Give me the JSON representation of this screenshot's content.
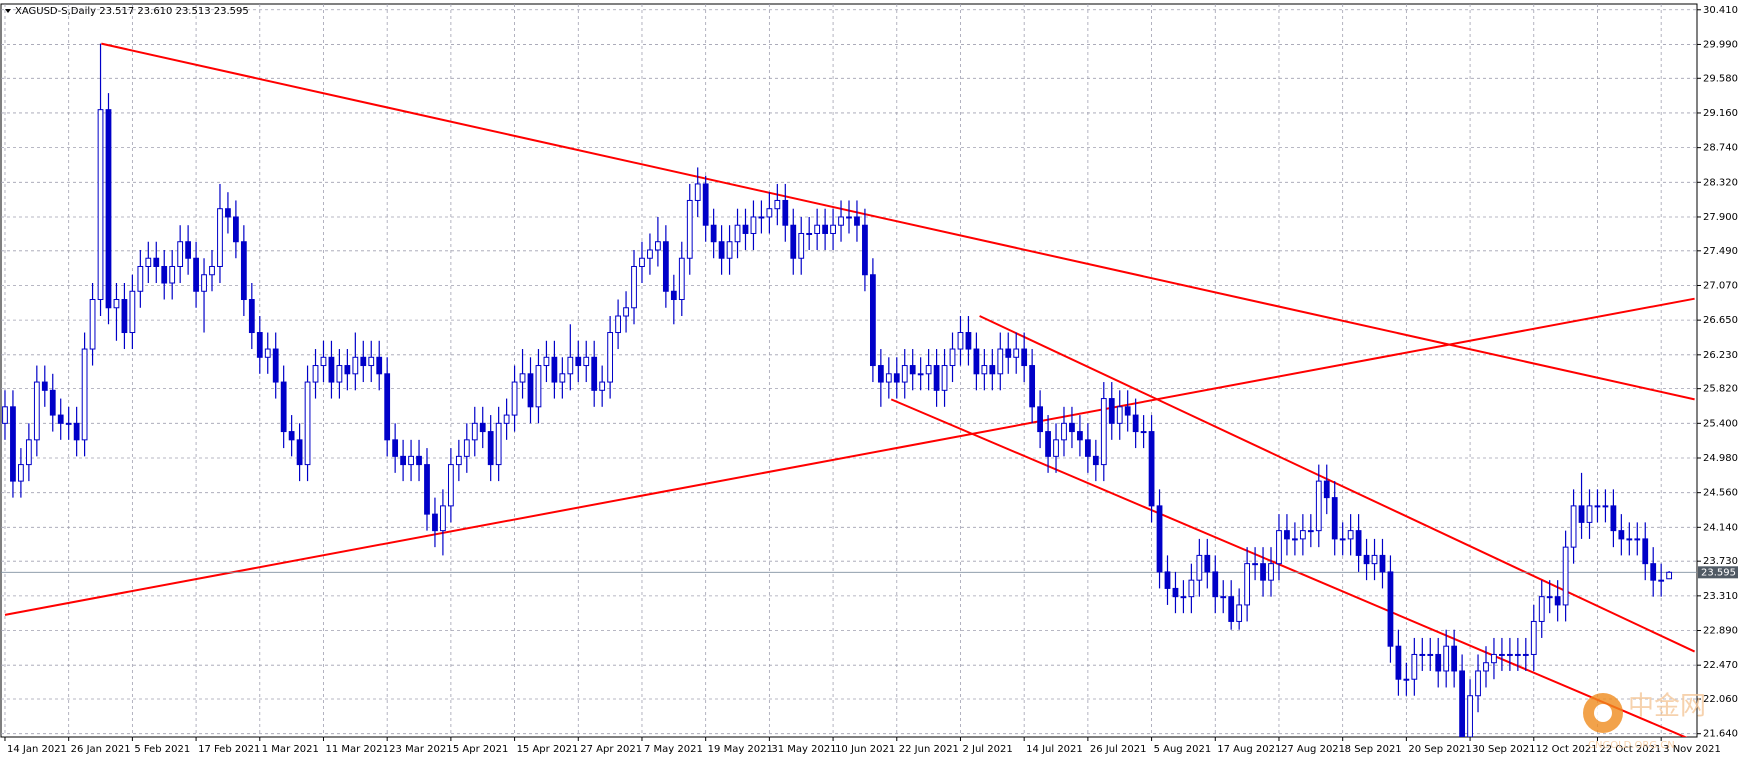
{
  "chart_data": {
    "type": "candlestick",
    "title": "XAGUSD-S,Daily  23.517 23.610 23.513 23.595",
    "watermark": {
      "name": "中金网",
      "site": "CNGOLD.ORG.CN"
    },
    "categories": [
      "14 Jan 2021",
      null,
      null,
      null,
      null,
      null,
      null,
      null,
      "26 Jan 2021",
      null,
      null,
      null,
      null,
      null,
      null,
      null,
      "5 Feb 2021",
      null,
      null,
      null,
      null,
      null,
      null,
      null,
      "17 Feb 2021",
      null,
      null,
      null,
      null,
      null,
      null,
      null,
      "1 Mar 2021",
      null,
      null,
      null,
      null,
      null,
      null,
      null,
      "11 Mar 2021",
      null,
      null,
      null,
      null,
      null,
      null,
      null,
      "23 Mar 2021",
      null,
      null,
      null,
      null,
      null,
      null,
      null,
      "5 Apr 2021",
      null,
      null,
      null,
      null,
      null,
      null,
      null,
      "15 Apr 2021",
      null,
      null,
      null,
      null,
      null,
      null,
      null,
      "27 Apr 2021",
      null,
      null,
      null,
      null,
      null,
      null,
      null,
      "7 May 2021",
      null,
      null,
      null,
      null,
      null,
      null,
      null,
      "19 May 2021",
      null,
      null,
      null,
      null,
      null,
      null,
      null,
      "31 May 2021",
      null,
      null,
      null,
      null,
      null,
      null,
      null,
      "10 Jun 2021",
      null,
      null,
      null,
      null,
      null,
      null,
      null,
      "22 Jun 2021",
      null,
      null,
      null,
      null,
      null,
      null,
      null,
      "2 Jul 2021",
      null,
      null,
      null,
      null,
      null,
      null,
      null,
      "14 Jul 2021",
      null,
      null,
      null,
      null,
      null,
      null,
      null,
      "26 Jul 2021",
      null,
      null,
      null,
      null,
      null,
      null,
      null,
      "5 Aug 2021",
      null,
      null,
      null,
      null,
      null,
      null,
      null,
      "17 Aug 2021",
      null,
      null,
      null,
      null,
      null,
      null,
      null,
      "27 Aug 2021",
      null,
      null,
      null,
      null,
      null,
      null,
      null,
      "8 Sep 2021",
      null,
      null,
      null,
      null,
      null,
      null,
      null,
      "20 Sep 2021",
      null,
      null,
      null,
      null,
      null,
      null,
      null,
      "30 Sep 2021",
      null,
      null,
      null,
      null,
      null,
      null,
      null,
      "12 Oct 2021",
      null,
      null,
      null,
      null,
      null,
      null,
      null,
      "22 Oct 2021",
      null,
      null,
      null,
      null,
      null,
      null,
      null,
      "3 Nov 2021",
      null
    ],
    "open": [
      25.4,
      25.6,
      24.7,
      24.9,
      25.2,
      25.9,
      25.8,
      25.5,
      25.4,
      25.4,
      25.2,
      26.3,
      26.9,
      29.2,
      26.8,
      26.9,
      26.5,
      27.0,
      27.3,
      27.4,
      27.3,
      27.1,
      27.3,
      27.6,
      27.4,
      27.0,
      27.2,
      27.3,
      28.0,
      27.9,
      27.6,
      26.9,
      26.5,
      26.2,
      26.3,
      25.9,
      25.3,
      25.2,
      24.9,
      25.9,
      26.1,
      26.2,
      25.9,
      26.1,
      26.0,
      26.2,
      26.1,
      26.2,
      26.0,
      25.2,
      25.0,
      24.9,
      25.0,
      24.9,
      24.3,
      24.1,
      24.4,
      24.9,
      25.0,
      25.2,
      25.4,
      25.3,
      24.9,
      25.4,
      25.5,
      25.9,
      26.0,
      25.6,
      26.1,
      26.2,
      25.9,
      26.0,
      26.2,
      26.1,
      26.2,
      25.8,
      25.9,
      26.5,
      26.7,
      26.8,
      27.3,
      27.4,
      27.5,
      27.6,
      27.0,
      26.9,
      27.4,
      28.1,
      28.3,
      27.8,
      27.6,
      27.4,
      27.6,
      27.8,
      27.7,
      27.9,
      27.9,
      28.0,
      28.1,
      27.8,
      27.4,
      27.7,
      27.7,
      27.8,
      27.7,
      27.8,
      27.9,
      27.9,
      27.8,
      27.2,
      26.1,
      25.9,
      26.0,
      25.9,
      26.1,
      26.0,
      26.0,
      26.1,
      25.8,
      26.1,
      26.3,
      26.5,
      26.3,
      26.0,
      26.1,
      26.0,
      26.3,
      26.2,
      26.3,
      26.1,
      25.6,
      25.3,
      25.0,
      25.2,
      25.4,
      25.3,
      25.2,
      25.0,
      24.9,
      25.7,
      25.4,
      25.6,
      25.5,
      25.3,
      25.3,
      24.4,
      23.6,
      23.4,
      23.3,
      23.3,
      23.5,
      23.8,
      23.6,
      23.3,
      23.3,
      23.0,
      23.2,
      23.7,
      23.7,
      23.5,
      23.7,
      24.1,
      24.0,
      24.0,
      24.1,
      24.1,
      24.7,
      24.5,
      24.0,
      24.0,
      24.1,
      23.8,
      23.7,
      23.8,
      23.6,
      22.7,
      22.3,
      22.3,
      22.6,
      22.6,
      22.6,
      22.4,
      22.7,
      22.4,
      21.6,
      22.1,
      22.4,
      22.5,
      22.6,
      22.6,
      22.6,
      22.6,
      22.6,
      23.0,
      23.3,
      23.3,
      23.2,
      23.9,
      24.4,
      24.2,
      24.4,
      24.4,
      24.4,
      24.1,
      24.0,
      24.0,
      24.0,
      23.7,
      23.5,
      23.517
    ],
    "high": [
      25.8,
      25.8,
      25.1,
      25.4,
      26.1,
      26.1,
      26.0,
      25.7,
      25.6,
      25.6,
      26.5,
      27.1,
      30.0,
      29.4,
      27.1,
      27.1,
      27.2,
      27.5,
      27.6,
      27.6,
      27.5,
      27.5,
      27.8,
      27.8,
      27.6,
      27.4,
      27.5,
      28.3,
      28.2,
      28.1,
      27.8,
      27.1,
      26.7,
      26.5,
      26.5,
      26.1,
      25.5,
      25.4,
      26.1,
      26.3,
      26.4,
      26.4,
      26.3,
      26.3,
      26.5,
      26.4,
      26.4,
      26.4,
      26.2,
      25.4,
      25.2,
      25.2,
      25.2,
      25.1,
      24.5,
      24.6,
      25.1,
      25.2,
      25.4,
      25.6,
      25.6,
      25.5,
      25.6,
      25.7,
      26.1,
      26.3,
      26.2,
      26.3,
      26.4,
      26.4,
      26.2,
      26.6,
      26.4,
      26.4,
      26.4,
      26.1,
      26.7,
      26.9,
      27.0,
      27.5,
      27.6,
      27.7,
      27.9,
      27.8,
      27.2,
      27.6,
      28.3,
      28.5,
      28.4,
      28.0,
      27.8,
      27.8,
      28.0,
      28.0,
      28.1,
      28.1,
      28.2,
      28.3,
      28.3,
      28.0,
      27.9,
      27.9,
      28.0,
      28.0,
      28.0,
      28.1,
      28.1,
      28.1,
      28.0,
      27.4,
      26.3,
      26.2,
      26.2,
      26.3,
      26.3,
      26.2,
      26.3,
      26.3,
      26.3,
      26.5,
      26.7,
      26.7,
      26.5,
      26.3,
      26.3,
      26.5,
      26.5,
      26.5,
      26.5,
      26.3,
      25.8,
      25.5,
      25.4,
      25.6,
      25.6,
      25.5,
      25.4,
      25.2,
      25.9,
      25.9,
      25.8,
      25.8,
      25.7,
      25.5,
      25.5,
      24.6,
      23.8,
      23.6,
      23.5,
      23.7,
      24.0,
      24.0,
      23.8,
      23.5,
      23.5,
      23.4,
      23.9,
      23.9,
      23.9,
      23.9,
      24.3,
      24.3,
      24.2,
      24.3,
      24.3,
      24.9,
      24.9,
      24.7,
      24.2,
      24.3,
      24.3,
      24.0,
      24.0,
      24.0,
      23.8,
      22.9,
      22.5,
      22.8,
      22.8,
      22.8,
      22.8,
      22.9,
      22.9,
      22.6,
      22.3,
      22.6,
      22.7,
      22.8,
      22.8,
      22.8,
      22.8,
      22.8,
      23.2,
      23.5,
      23.5,
      23.5,
      24.1,
      24.6,
      24.8,
      24.6,
      24.6,
      24.6,
      24.6,
      24.3,
      24.2,
      24.2,
      24.2,
      23.9,
      23.7,
      23.61
    ],
    "low": [
      25.2,
      24.5,
      24.5,
      24.7,
      25.0,
      25.6,
      25.3,
      25.2,
      25.2,
      25.0,
      25.0,
      26.1,
      26.7,
      26.6,
      26.4,
      26.3,
      26.3,
      26.8,
      27.1,
      27.1,
      26.9,
      26.9,
      27.1,
      27.2,
      26.8,
      26.5,
      27.0,
      27.1,
      27.7,
      27.4,
      26.7,
      26.3,
      26.0,
      26.0,
      25.7,
      25.1,
      25.0,
      24.7,
      24.7,
      25.7,
      25.9,
      25.7,
      25.7,
      25.8,
      25.8,
      25.9,
      25.9,
      25.8,
      25.0,
      24.8,
      24.7,
      24.7,
      24.7,
      24.1,
      23.9,
      23.8,
      24.2,
      24.7,
      24.8,
      25.0,
      25.1,
      24.7,
      24.7,
      25.2,
      25.3,
      25.7,
      25.4,
      25.4,
      25.9,
      25.7,
      25.7,
      25.8,
      25.9,
      25.9,
      25.6,
      25.6,
      25.7,
      26.3,
      26.5,
      26.6,
      27.1,
      27.2,
      27.3,
      26.8,
      26.6,
      26.7,
      27.2,
      27.9,
      27.6,
      27.4,
      27.2,
      27.2,
      27.4,
      27.5,
      27.5,
      27.7,
      27.7,
      27.8,
      27.6,
      27.2,
      27.2,
      27.5,
      27.5,
      27.5,
      27.5,
      27.6,
      27.7,
      27.6,
      27.0,
      25.9,
      25.6,
      25.7,
      25.7,
      25.7,
      25.8,
      25.8,
      25.8,
      25.6,
      25.6,
      25.9,
      26.1,
      26.1,
      25.8,
      25.8,
      25.8,
      25.8,
      26.0,
      26.0,
      25.9,
      25.4,
      25.1,
      24.8,
      24.8,
      25.0,
      25.1,
      25.0,
      24.8,
      24.7,
      24.7,
      25.2,
      25.2,
      25.3,
      25.1,
      25.1,
      24.2,
      23.4,
      23.2,
      23.1,
      23.1,
      23.1,
      23.3,
      23.4,
      23.1,
      23.1,
      22.9,
      22.9,
      23.0,
      23.5,
      23.3,
      23.3,
      23.5,
      23.8,
      23.8,
      23.8,
      23.9,
      23.9,
      24.3,
      23.8,
      23.8,
      23.8,
      23.6,
      23.5,
      23.5,
      23.4,
      22.5,
      22.1,
      22.1,
      22.1,
      22.4,
      22.4,
      22.2,
      22.2,
      22.2,
      21.4,
      21.4,
      21.9,
      22.2,
      22.3,
      22.4,
      22.4,
      22.4,
      22.4,
      22.4,
      22.8,
      23.1,
      23.0,
      23.0,
      23.7,
      24.0,
      24.0,
      24.2,
      24.2,
      23.9,
      23.8,
      23.8,
      23.8,
      23.5,
      23.3,
      23.3,
      23.513
    ],
    "close": [
      25.6,
      24.7,
      24.9,
      25.2,
      25.9,
      25.8,
      25.5,
      25.4,
      25.4,
      25.2,
      26.3,
      26.9,
      29.2,
      26.8,
      26.9,
      26.5,
      27.0,
      27.3,
      27.4,
      27.3,
      27.1,
      27.3,
      27.6,
      27.4,
      27.0,
      27.2,
      27.3,
      28.0,
      27.9,
      27.6,
      26.9,
      26.5,
      26.2,
      26.3,
      25.9,
      25.3,
      25.2,
      24.9,
      25.9,
      26.1,
      26.2,
      25.9,
      26.1,
      26.0,
      26.2,
      26.1,
      26.2,
      26.0,
      25.2,
      25.0,
      24.9,
      25.0,
      24.9,
      24.3,
      24.1,
      24.4,
      24.9,
      25.0,
      25.2,
      25.4,
      25.3,
      24.9,
      25.4,
      25.5,
      25.9,
      26.0,
      25.6,
      26.1,
      26.2,
      25.9,
      26.0,
      26.2,
      26.1,
      26.2,
      25.8,
      25.9,
      26.5,
      26.7,
      26.8,
      27.3,
      27.4,
      27.5,
      27.6,
      27.0,
      26.9,
      27.4,
      28.1,
      28.3,
      27.8,
      27.6,
      27.4,
      27.6,
      27.8,
      27.7,
      27.9,
      27.9,
      28.0,
      28.1,
      27.8,
      27.4,
      27.7,
      27.7,
      27.8,
      27.7,
      27.8,
      27.9,
      27.9,
      27.8,
      27.2,
      26.1,
      25.9,
      26.0,
      25.9,
      26.1,
      26.0,
      26.0,
      26.1,
      25.8,
      26.1,
      26.3,
      26.5,
      26.3,
      26.0,
      26.1,
      26.0,
      26.3,
      26.2,
      26.3,
      26.1,
      25.6,
      25.3,
      25.0,
      25.2,
      25.4,
      25.3,
      25.2,
      25.0,
      24.9,
      25.7,
      25.4,
      25.6,
      25.5,
      25.3,
      25.3,
      24.4,
      23.6,
      23.4,
      23.3,
      23.3,
      23.5,
      23.8,
      23.6,
      23.3,
      23.3,
      23.0,
      23.2,
      23.7,
      23.7,
      23.5,
      23.7,
      24.1,
      24.0,
      24.0,
      24.1,
      24.1,
      24.7,
      24.5,
      24.0,
      24.0,
      24.1,
      23.8,
      23.7,
      23.8,
      23.6,
      22.7,
      22.3,
      22.3,
      22.6,
      22.6,
      22.6,
      22.4,
      22.7,
      22.4,
      21.6,
      22.1,
      22.4,
      22.5,
      22.6,
      22.6,
      22.6,
      22.6,
      22.6,
      23.0,
      23.3,
      23.3,
      23.2,
      23.9,
      24.4,
      24.2,
      24.4,
      24.4,
      24.4,
      24.1,
      24.0,
      24.0,
      24.0,
      23.7,
      23.5,
      23.5,
      23.595
    ],
    "bull_color": "#ffffff",
    "bear_color": "#0000c8",
    "outline_color": "#0000c8",
    "current_price": 23.595,
    "trendlines": [
      {
        "x": [
          12.1,
          212.2
        ],
        "y": [
          30.0,
          25.69
        ],
        "color": "#ff0000"
      },
      {
        "x": [
          0,
          212.2
        ],
        "y": [
          23.08,
          26.91
        ],
        "color": "#ff0000"
      },
      {
        "x": [
          122.4,
          212.2
        ],
        "y": [
          26.7,
          22.635
        ],
        "color": "#ff0000"
      },
      {
        "x": [
          111.3,
          212.2
        ],
        "y": [
          25.69,
          21.55
        ],
        "color": "#ff0000"
      }
    ],
    "ylim": [
      21.6,
      30.48
    ],
    "yticks": [
      {
        "value": 30.41,
        "label": "30.410"
      },
      {
        "value": 29.99,
        "label": "29.990"
      },
      {
        "value": 29.58,
        "label": "29.580"
      },
      {
        "value": 29.16,
        "label": "29.160"
      },
      {
        "value": 28.74,
        "label": "28.740"
      },
      {
        "value": 28.32,
        "label": "28.320"
      },
      {
        "value": 27.9,
        "label": "27.900"
      },
      {
        "value": 27.49,
        "label": "27.490"
      },
      {
        "value": 27.07,
        "label": "27.070"
      },
      {
        "value": 26.65,
        "label": "26.650"
      },
      {
        "value": 26.23,
        "label": "26.230"
      },
      {
        "value": 25.82,
        "label": "25.820"
      },
      {
        "value": 25.4,
        "label": "25.400"
      },
      {
        "value": 24.98,
        "label": "24.980"
      },
      {
        "value": 24.56,
        "label": "24.560"
      },
      {
        "value": 24.14,
        "label": "24.140"
      },
      {
        "value": 23.73,
        "label": "23.730"
      },
      {
        "value": 23.31,
        "label": "23.310"
      },
      {
        "value": 22.89,
        "label": "22.890"
      },
      {
        "value": 22.47,
        "label": "22.470"
      },
      {
        "value": 22.06,
        "label": "22.060"
      },
      {
        "value": 21.64,
        "label": "21.640"
      }
    ],
    "grid": true
  }
}
